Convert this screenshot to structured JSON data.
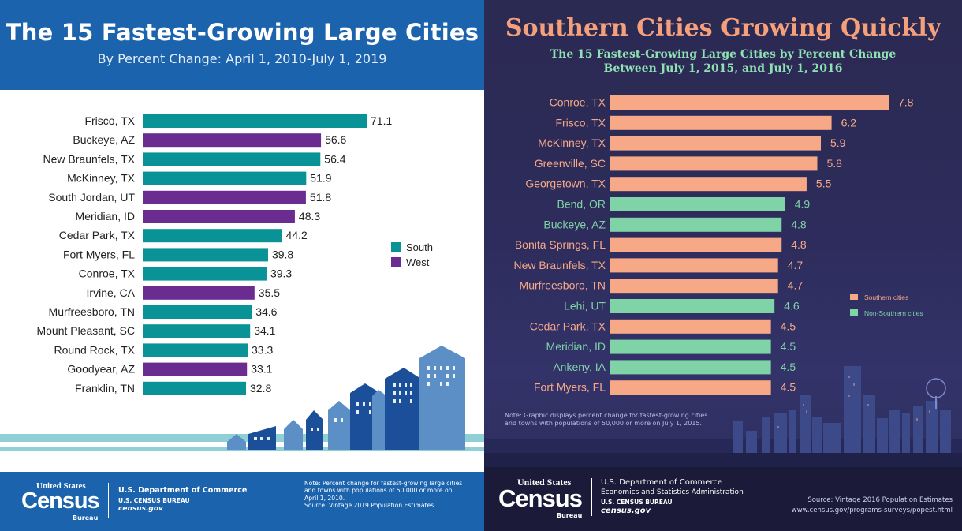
{
  "left": {
    "title": "The 15 Fastest-Growing Large Cities",
    "subtitle": "By Percent Change: April 1, 2010-July 1, 2019",
    "footer": {
      "logo_top": "United States",
      "logo_main": "Census",
      "logo_bottom": "Bureau",
      "dept": "U.S. Department of Commerce",
      "bureau": "U.S. CENSUS BUREAU",
      "site": "census.gov",
      "note": "Note: Percent change for fastest-growing large cities\nand towns with populations of 50,000 or more on\nApril 1, 2010.\nSource: Vintage 2019 Population Estimates"
    }
  },
  "right": {
    "title": "Southern Cities Growing Quickly",
    "subtitle_line1": "The 15 Fastest-Growing Large Cities by Percent Change",
    "subtitle_line2": "Between July 1, 2015, and July 1, 2016",
    "note": "Note: Graphic displays percent change for fastest-growing cities\nand towns with populations of 50,000 or more on July 1, 2015.",
    "footer": {
      "logo_top": "United States",
      "logo_main": "Census",
      "logo_bottom": "Bureau",
      "dept": "U.S. Department of Commerce",
      "admin": "Economics and Statistics Administration",
      "bureau": "U.S. CENSUS BUREAU",
      "site": "census.gov",
      "source": "Source: Vintage 2016 Population Estimates",
      "url": "www.census.gov/programs-surveys/popest.html"
    }
  },
  "chart_data": [
    {
      "type": "bar",
      "orientation": "horizontal",
      "title": "The 15 Fastest-Growing Large Cities",
      "subtitle": "By Percent Change: April 1, 2010-July 1, 2019",
      "categories": [
        "Frisco, TX",
        "Buckeye, AZ",
        "New Braunfels, TX",
        "McKinney, TX",
        "South Jordan, UT",
        "Meridian, ID",
        "Cedar Park, TX",
        "Fort Myers, FL",
        "Conroe, TX",
        "Irvine, CA",
        "Murfreesboro, TN",
        "Mount Pleasant, SC",
        "Round Rock, TX",
        "Goodyear, AZ",
        "Franklin, TN"
      ],
      "values": [
        71.1,
        56.6,
        56.4,
        51.9,
        51.8,
        48.3,
        44.2,
        39.8,
        39.3,
        35.5,
        34.6,
        34.1,
        33.3,
        33.1,
        32.8
      ],
      "value_labels": [
        "71.1",
        "56.6",
        "56.4",
        "51.9",
        "51.8",
        "48.3",
        "44.2",
        "39.8",
        "39.3",
        "35.5",
        "34.6",
        "34.1",
        "33.3",
        "33.1",
        "32.8"
      ],
      "groups": [
        "South",
        "West",
        "South",
        "South",
        "West",
        "West",
        "South",
        "South",
        "South",
        "West",
        "South",
        "South",
        "South",
        "West",
        "South"
      ],
      "legend": [
        {
          "name": "South",
          "color": "#0a9396"
        },
        {
          "name": "West",
          "color": "#6a2c91"
        }
      ],
      "legend_position": "right",
      "xlim": [
        0,
        80
      ],
      "grid": false
    },
    {
      "type": "bar",
      "orientation": "horizontal",
      "title": "Southern Cities Growing Quickly",
      "subtitle": "The 15 Fastest-Growing Large Cities by Percent Change Between July 1, 2015, and July 1, 2016",
      "categories": [
        "Conroe, TX",
        "Frisco, TX",
        "McKinney, TX",
        "Greenville, SC",
        "Georgetown, TX",
        "Bend, OR",
        "Buckeye, AZ",
        "Bonita Springs, FL",
        "New Braunfels, TX",
        "Murfreesboro, TN",
        "Lehi, UT",
        "Cedar Park, TX",
        "Meridian, ID",
        "Ankeny, IA",
        "Fort Myers, FL"
      ],
      "values": [
        7.8,
        6.2,
        5.9,
        5.8,
        5.5,
        4.9,
        4.8,
        4.8,
        4.7,
        4.7,
        4.6,
        4.5,
        4.5,
        4.5,
        4.5
      ],
      "value_labels": [
        "7.8",
        "6.2",
        "5.9",
        "5.8",
        "5.5",
        "4.9",
        "4.8",
        "4.8",
        "4.7",
        "4.7",
        "4.6",
        "4.5",
        "4.5",
        "4.5",
        "4.5"
      ],
      "groups": [
        "Southern cities",
        "Southern cities",
        "Southern cities",
        "Southern cities",
        "Southern cities",
        "Non-Southern cities",
        "Non-Southern cities",
        "Southern cities",
        "Southern cities",
        "Southern cities",
        "Non-Southern cities",
        "Southern cities",
        "Non-Southern cities",
        "Non-Southern cities",
        "Southern cities"
      ],
      "legend": [
        {
          "name": "Southern cities",
          "color": "#f7a887"
        },
        {
          "name": "Non-Southern cities",
          "color": "#7fd3a6"
        }
      ],
      "legend_position": "right",
      "xlim": [
        0,
        8.5
      ],
      "grid": false
    }
  ]
}
